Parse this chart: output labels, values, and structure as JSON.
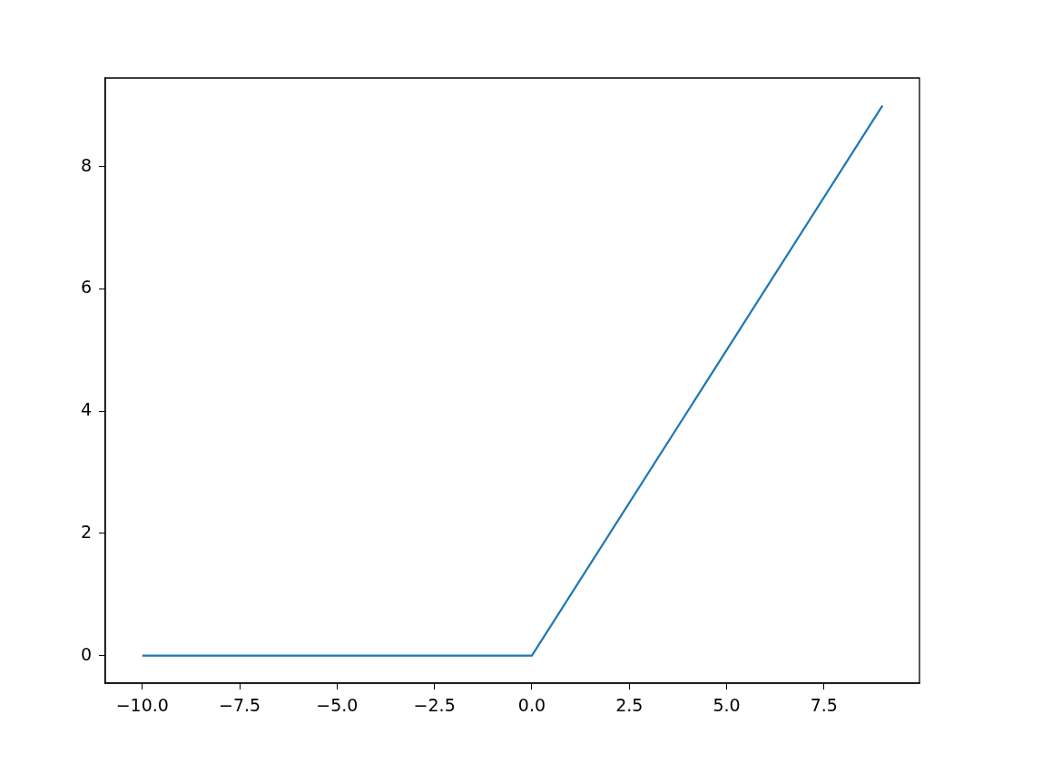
{
  "chart_data": {
    "type": "line",
    "x": [
      -10,
      0,
      9
    ],
    "series": [
      {
        "color": "#1f77b4",
        "values": [
          0,
          0,
          9
        ]
      }
    ],
    "xlim": [
      -10.95,
      9.95
    ],
    "ylim": [
      -0.45,
      9.45
    ],
    "xticks": [
      {
        "value": -10,
        "label": "−10.0"
      },
      {
        "value": -7.5,
        "label": "−7.5"
      },
      {
        "value": -5,
        "label": "−5.0"
      },
      {
        "value": -2.5,
        "label": "−2.5"
      },
      {
        "value": 0,
        "label": "0.0"
      },
      {
        "value": 2.5,
        "label": "2.5"
      },
      {
        "value": 5,
        "label": "5.0"
      },
      {
        "value": 7.5,
        "label": "7.5"
      }
    ],
    "yticks": [
      0,
      2,
      4,
      6,
      8
    ],
    "grid": false,
    "legend": false,
    "marker": "none",
    "line_style": "solid"
  }
}
